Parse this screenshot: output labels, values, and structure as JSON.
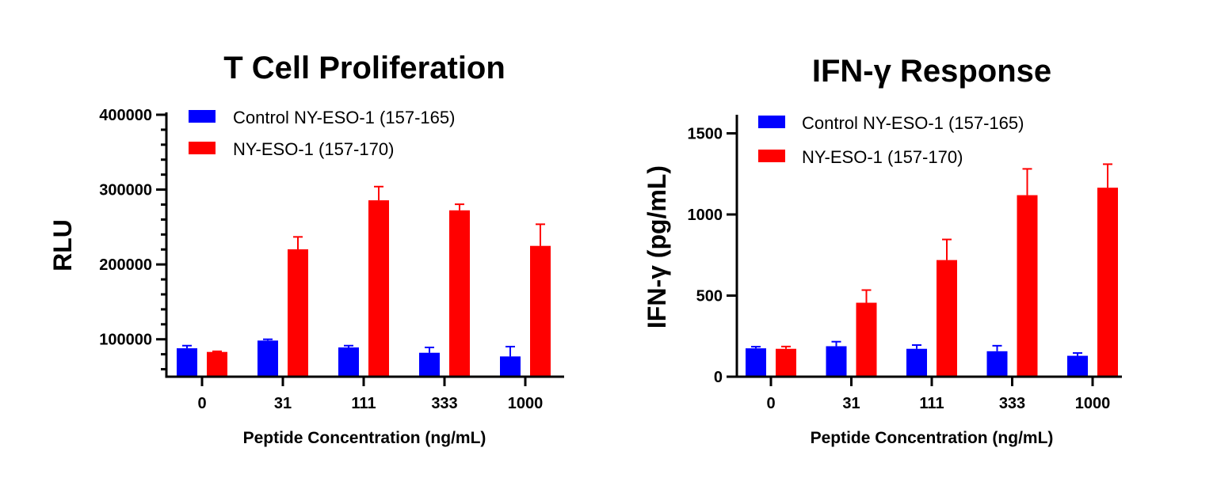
{
  "colors": {
    "control": "#0000FF",
    "test": "#FF0000",
    "axis": "#000000"
  },
  "chart_data": [
    {
      "type": "bar",
      "title": "T Cell Proliferation",
      "xlabel": "Peptide Concentration (ng/mL)",
      "ylabel": "RLU",
      "ylim": [
        50000,
        400000
      ],
      "yticks": [
        "100000",
        "200000",
        "300000",
        "400000"
      ],
      "categories": [
        "0",
        "31",
        "111",
        "333",
        "1000"
      ],
      "legend_position": "top-left",
      "grid": false,
      "series": [
        {
          "name": "Control NY-ESO-1 (157-165)",
          "values": [
            88000,
            98300,
            89100,
            82000,
            77100
          ],
          "error_upper": [
            91500,
            100000,
            91500,
            89100,
            90200
          ]
        },
        {
          "name": "NY-ESO-1 (157-170)",
          "values": [
            83100,
            220200,
            285700,
            272300,
            224800
          ],
          "error_upper": [
            83900,
            236800,
            304000,
            280400,
            253700
          ]
        }
      ]
    },
    {
      "type": "bar",
      "title": "IFN-γ Response",
      "xlabel": "Peptide Concentration (ng/mL)",
      "ylabel": "IFN-γ (pg/mL)",
      "ylim": [
        0,
        1600
      ],
      "yticks": [
        "0",
        "500",
        "1000",
        "1500"
      ],
      "categories": [
        "0",
        "31",
        "111",
        "333",
        "1000"
      ],
      "legend_position": "top-left",
      "grid": false,
      "series": [
        {
          "name": "Control NY-ESO-1 (157-165)",
          "values": [
            175,
            188,
            172,
            157,
            129
          ],
          "error_upper": [
            185,
            216,
            195,
            191,
            146
          ]
        },
        {
          "name": "NY-ESO-1 (157-170)",
          "values": [
            172,
            456,
            719,
            1119,
            1165
          ],
          "error_upper": [
            186,
            534,
            846,
            1281,
            1310
          ]
        }
      ]
    }
  ]
}
